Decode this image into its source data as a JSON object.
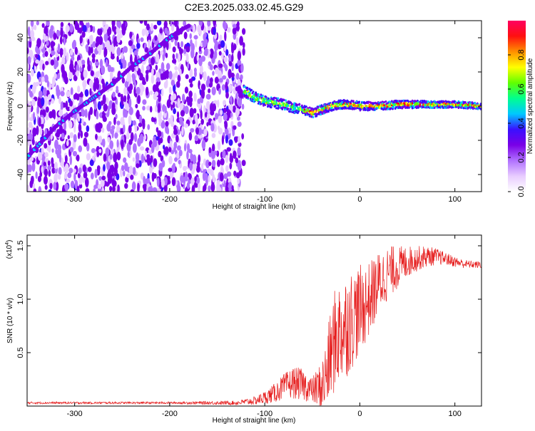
{
  "title": "C2E3.2025.033.02.45.G29",
  "colors": {
    "line": "#e62020",
    "background": "#ffffff",
    "frame": "#000000",
    "spectrum_low": "#7a00e6",
    "colormap": [
      "#ffffff",
      "#e8ccff",
      "#b070ff",
      "#7a00e6",
      "#3a10ff",
      "#00c8ff",
      "#00ff90",
      "#60ff00",
      "#ffff00",
      "#ff9000",
      "#ff1010",
      "#ff0060"
    ]
  },
  "chart_data": [
    {
      "type": "heatmap",
      "xlabel": "Height of straight line (km)",
      "ylabel": "Frequency (Hz)",
      "xlim": [
        -350,
        128
      ],
      "ylim": [
        -50,
        50
      ],
      "xticks": [
        -300,
        -200,
        -100,
        0,
        100
      ],
      "xtick_labels": [
        "-300",
        "-200",
        "-100",
        "0",
        "100"
      ],
      "yticks": [
        -40,
        -20,
        0,
        20,
        40
      ],
      "ytick_labels": [
        "-40",
        "-20",
        "0",
        "20",
        "40"
      ],
      "colorbar": {
        "label": "Normalized spectral amplitude",
        "range": [
          0,
          1
        ],
        "ticks": [
          0.0,
          0.2,
          0.4,
          0.6,
          0.8
        ],
        "tick_labels": [
          "0.0",
          "0.2",
          "0.4",
          "0.6",
          "0.8"
        ]
      },
      "noise_region_x": [
        -350,
        -122
      ],
      "signal_track": {
        "x": [
          -122,
          -110,
          -100,
          -90,
          -80,
          -70,
          -60,
          -50,
          -40,
          -30,
          -20,
          -10,
          0,
          20,
          40,
          60,
          80,
          100,
          128
        ],
        "y": [
          9,
          5,
          3,
          2,
          1,
          -1,
          -2,
          -4,
          -2,
          0,
          1,
          1,
          0,
          0,
          1,
          1,
          1,
          1,
          0
        ]
      },
      "line_track_x": [
        -350,
        -320,
        -300,
        -280,
        -260,
        -240,
        -220,
        -205,
        -190,
        -180
      ],
      "line_track_y": [
        -30,
        -12,
        -3,
        5,
        13,
        23,
        31,
        38,
        44,
        47
      ]
    },
    {
      "type": "line",
      "xlabel": "Height of straight line (km)",
      "ylabel": "SNR (10 * v/v)",
      "multiplier": "(x10",
      "multiplier_exp": "4",
      "multiplier_close": ")",
      "xlim": [
        -350,
        128
      ],
      "ylim": [
        0,
        1.6
      ],
      "xticks": [
        -300,
        -200,
        -100,
        0,
        100
      ],
      "xtick_labels": [
        "-300",
        "-200",
        "-100",
        "0",
        "100"
      ],
      "yticks": [
        0.5,
        1.0,
        1.5
      ],
      "ytick_labels": [
        "0.5",
        "1.0",
        "1.5"
      ],
      "envelope": {
        "x": [
          -350,
          -200,
          -130,
          -120,
          -110,
          -100,
          -90,
          -80,
          -70,
          -60,
          -50,
          -40,
          -35,
          -30,
          -25,
          -20,
          -15,
          -10,
          -5,
          0,
          10,
          20,
          30,
          40,
          50,
          60,
          70,
          80,
          90,
          100,
          110,
          128
        ],
        "mean": [
          0.03,
          0.03,
          0.03,
          0.04,
          0.05,
          0.08,
          0.12,
          0.18,
          0.22,
          0.2,
          0.15,
          0.18,
          0.3,
          0.5,
          0.65,
          0.7,
          0.75,
          0.8,
          0.85,
          0.9,
          1.0,
          1.15,
          1.25,
          1.3,
          1.35,
          1.38,
          1.4,
          1.4,
          1.38,
          1.35,
          1.33,
          1.32
        ],
        "spread": [
          0.01,
          0.01,
          0.02,
          0.03,
          0.04,
          0.06,
          0.09,
          0.12,
          0.15,
          0.15,
          0.12,
          0.25,
          0.35,
          0.45,
          0.5,
          0.5,
          0.5,
          0.48,
          0.45,
          0.42,
          0.35,
          0.3,
          0.25,
          0.2,
          0.15,
          0.12,
          0.1,
          0.08,
          0.06,
          0.05,
          0.04,
          0.03
        ]
      }
    }
  ]
}
